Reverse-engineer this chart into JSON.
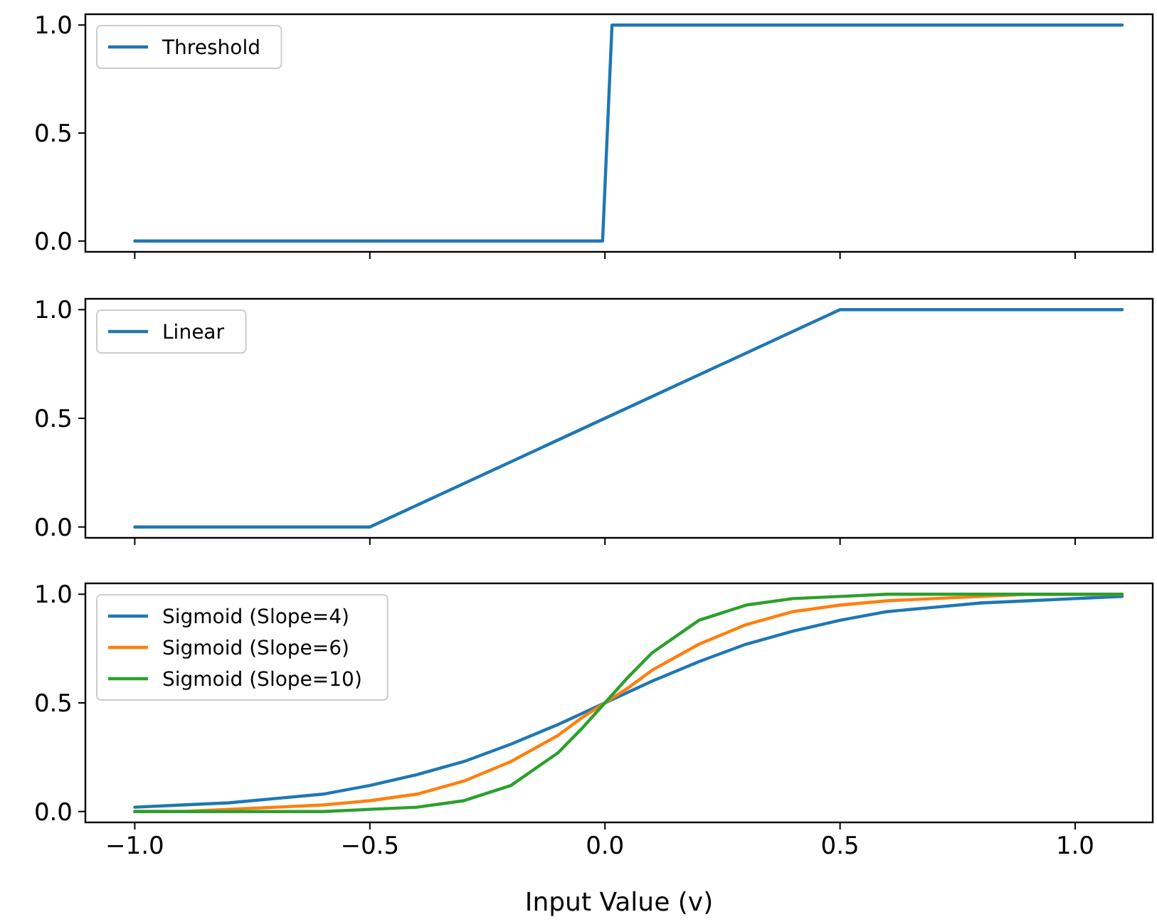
{
  "chart_data": [
    {
      "type": "line",
      "xlim": [
        -1.105,
        1.165
      ],
      "xticks": [
        {
          "value": -1,
          "label": null
        },
        {
          "value": -0.5,
          "label": null
        },
        {
          "value": 0,
          "label": null
        },
        {
          "value": 0.5,
          "label": null
        },
        {
          "value": 1,
          "label": null
        }
      ],
      "ylim": [
        -0.05,
        1.05
      ],
      "yticks": [
        {
          "value": 0,
          "label": "0.0"
        },
        {
          "value": 0.5,
          "label": "0.5"
        },
        {
          "value": 1,
          "label": "1.0"
        }
      ],
      "tick_labels": "y",
      "legend": "top left",
      "series": [
        {
          "name": "Threshold",
          "color": "#1f77b4",
          "x": [
            -1,
            -0.005,
            0.015,
            1.1
          ],
          "values": [
            0,
            0,
            1,
            1
          ]
        }
      ]
    },
    {
      "type": "line",
      "xlim": [
        -1.105,
        1.165
      ],
      "xticks": [
        {
          "value": -1,
          "label": null
        },
        {
          "value": -0.5,
          "label": null
        },
        {
          "value": 0,
          "label": null
        },
        {
          "value": 0.5,
          "label": null
        },
        {
          "value": 1,
          "label": null
        }
      ],
      "ylim": [
        -0.05,
        1.05
      ],
      "yticks": [
        {
          "value": 0,
          "label": "0.0"
        },
        {
          "value": 0.5,
          "label": "0.5"
        },
        {
          "value": 1,
          "label": "1.0"
        }
      ],
      "tick_labels": "y",
      "legend": "top left",
      "series": [
        {
          "name": "Linear",
          "color": "#1f77b4",
          "x": [
            -1,
            -0.5,
            0.5,
            1.1
          ],
          "values": [
            0,
            0,
            1,
            1
          ]
        }
      ]
    },
    {
      "type": "line",
      "xlabel": "Input Value (v)",
      "xlim": [
        -1.105,
        1.165
      ],
      "xticks": [
        {
          "value": -1,
          "label": "−1.0"
        },
        {
          "value": -0.5,
          "label": "−0.5"
        },
        {
          "value": 0,
          "label": "0.0"
        },
        {
          "value": 0.5,
          "label": "0.5"
        },
        {
          "value": 1,
          "label": "1.0"
        }
      ],
      "ylim": [
        -0.05,
        1.05
      ],
      "yticks": [
        {
          "value": 0,
          "label": "0.0"
        },
        {
          "value": 0.5,
          "label": "0.5"
        },
        {
          "value": 1,
          "label": "1.0"
        }
      ],
      "legend": "top left",
      "series": [
        {
          "name": "Sigmoid (Slope=4)",
          "color": "#1f77b4",
          "x": [
            -1,
            -0.9,
            -0.8,
            -0.7,
            -0.6,
            -0.5,
            -0.4,
            -0.3,
            -0.2,
            -0.1,
            -0.05,
            0,
            0.05,
            0.1,
            0.2,
            0.3,
            0.4,
            0.5,
            0.6,
            0.7,
            0.8,
            0.9,
            1,
            1.1
          ],
          "values": [
            0.02,
            0.03,
            0.04,
            0.06,
            0.08,
            0.12,
            0.17,
            0.23,
            0.31,
            0.4,
            0.45,
            0.5,
            0.55,
            0.6,
            0.69,
            0.77,
            0.83,
            0.88,
            0.92,
            0.94,
            0.96,
            0.97,
            0.98,
            0.99
          ]
        },
        {
          "name": "Sigmoid (Slope=6)",
          "color": "#ff7f0e",
          "x": [
            -1,
            -0.9,
            -0.8,
            -0.7,
            -0.6,
            -0.5,
            -0.4,
            -0.3,
            -0.2,
            -0.1,
            -0.05,
            0,
            0.05,
            0.1,
            0.2,
            0.3,
            0.4,
            0.5,
            0.6,
            0.7,
            0.8,
            0.9,
            1,
            1.1
          ],
          "values": [
            0,
            0,
            0.01,
            0.02,
            0.03,
            0.05,
            0.08,
            0.14,
            0.23,
            0.35,
            0.43,
            0.5,
            0.57,
            0.65,
            0.77,
            0.86,
            0.92,
            0.95,
            0.97,
            0.98,
            0.99,
            1,
            1,
            1
          ]
        },
        {
          "name": "Sigmoid (Slope=10)",
          "color": "#2ca02c",
          "x": [
            -1,
            -0.9,
            -0.8,
            -0.7,
            -0.6,
            -0.5,
            -0.4,
            -0.3,
            -0.2,
            -0.1,
            -0.05,
            0,
            0.05,
            0.1,
            0.2,
            0.3,
            0.4,
            0.5,
            0.6,
            0.7,
            0.8,
            0.9,
            1,
            1.1
          ],
          "values": [
            0,
            0,
            0,
            0,
            0,
            0.01,
            0.02,
            0.05,
            0.12,
            0.27,
            0.38,
            0.5,
            0.62,
            0.73,
            0.88,
            0.95,
            0.98,
            0.99,
            1,
            1,
            1,
            1,
            1,
            1
          ]
        }
      ]
    }
  ]
}
